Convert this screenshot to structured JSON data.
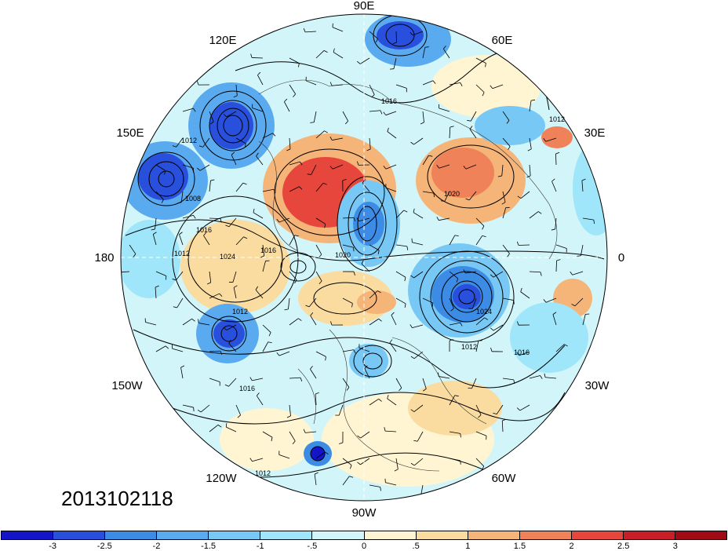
{
  "title": "",
  "date_label": "2013102118",
  "longitude_labels": {
    "top": "90E",
    "top_left": "120E",
    "top_right": "60E",
    "upper_left": "150E",
    "upper_right": "30E",
    "left": "180",
    "right": "0",
    "lower_left": "150W",
    "lower_right": "30W",
    "bottom_left": "120W",
    "bottom_right": "60W",
    "bottom": "90W"
  },
  "contour_labels": [
    "1016",
    "1012",
    "1008",
    "1016",
    "1024",
    "1012",
    "1016",
    "1020",
    "1012",
    "1016",
    "1020",
    "1024",
    "1012",
    "1016",
    "1012",
    "1012"
  ],
  "colorbar": {
    "colors": [
      "#1414c8",
      "#2850dc",
      "#3c8ce6",
      "#5aaaf0",
      "#78c8f5",
      "#a0e6fa",
      "#d2f5fa",
      "#fff5d2",
      "#fadca0",
      "#f5b478",
      "#f0825a",
      "#e6463c",
      "#c81e28",
      "#a00a14"
    ],
    "labels": [
      "-3",
      "-2.5",
      "-2",
      "-1.5",
      "-1",
      "-.5",
      "0",
      ".5",
      "1",
      "1.5",
      "2",
      "2.5",
      "3"
    ]
  }
}
